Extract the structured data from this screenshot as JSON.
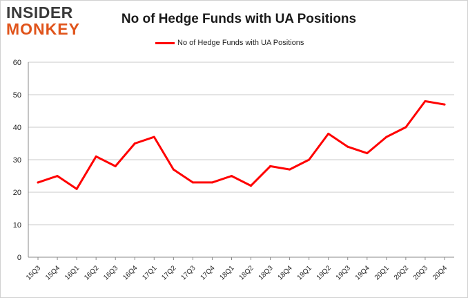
{
  "logo": {
    "line1": "INSIDER",
    "line2": "MONKEY"
  },
  "chart_data": {
    "type": "line",
    "title": "No of Hedge Funds with UA Positions",
    "xlabel": "",
    "ylabel": "",
    "categories": [
      "15Q3",
      "15Q4",
      "16Q1",
      "16Q2",
      "16Q3",
      "16Q4",
      "17Q1",
      "17Q2",
      "17Q3",
      "17Q4",
      "18Q1",
      "18Q2",
      "18Q3",
      "18Q4",
      "19Q1",
      "19Q2",
      "19Q3",
      "19Q4",
      "20Q1",
      "20Q2",
      "20Q3",
      "20Q4"
    ],
    "series": [
      {
        "name": "No of Hedge Funds with UA Positions",
        "color": "#ff0000",
        "values": [
          23,
          25,
          21,
          31,
          28,
          35,
          37,
          27,
          23,
          23,
          25,
          22,
          28,
          27,
          30,
          38,
          34,
          32,
          37,
          40,
          48,
          47
        ]
      }
    ],
    "ylim": [
      0,
      60
    ],
    "yticks": [
      0,
      10,
      20,
      30,
      40,
      50,
      60
    ],
    "grid": "horizontal",
    "legend": "top-center"
  }
}
